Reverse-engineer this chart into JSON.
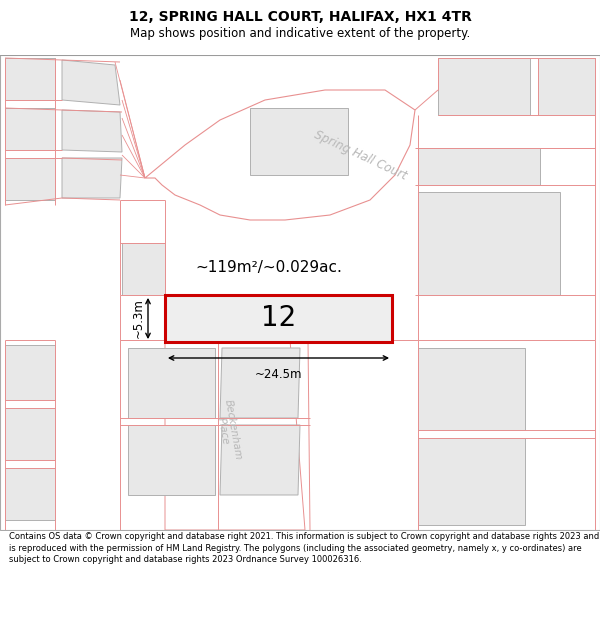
{
  "title": "12, SPRING HALL COURT, HALIFAX, HX1 4TR",
  "subtitle": "Map shows position and indicative extent of the property.",
  "footer": "Contains OS data © Crown copyright and database right 2021. This information is subject to Crown copyright and database rights 2023 and is reproduced with the permission of HM Land Registry. The polygons (including the associated geometry, namely x, y co-ordinates) are subject to Crown copyright and database rights 2023 Ordnance Survey 100026316.",
  "area_label": "~119m²/~0.029ac.",
  "width_label": "~24.5m",
  "height_label": "~5.3m",
  "plot_number": "12",
  "bg_color": "#ffffff",
  "building_fill": "#e8e8e8",
  "building_edge": "#b0b0b0",
  "plot_edge_color": "#cc0000",
  "plot_fill": "#eeeeee",
  "road_line_color": "#e89090",
  "street_label_color": "#b8b8b8",
  "title_fontsize": 10,
  "subtitle_fontsize": 8.5,
  "footer_fontsize": 6.0
}
